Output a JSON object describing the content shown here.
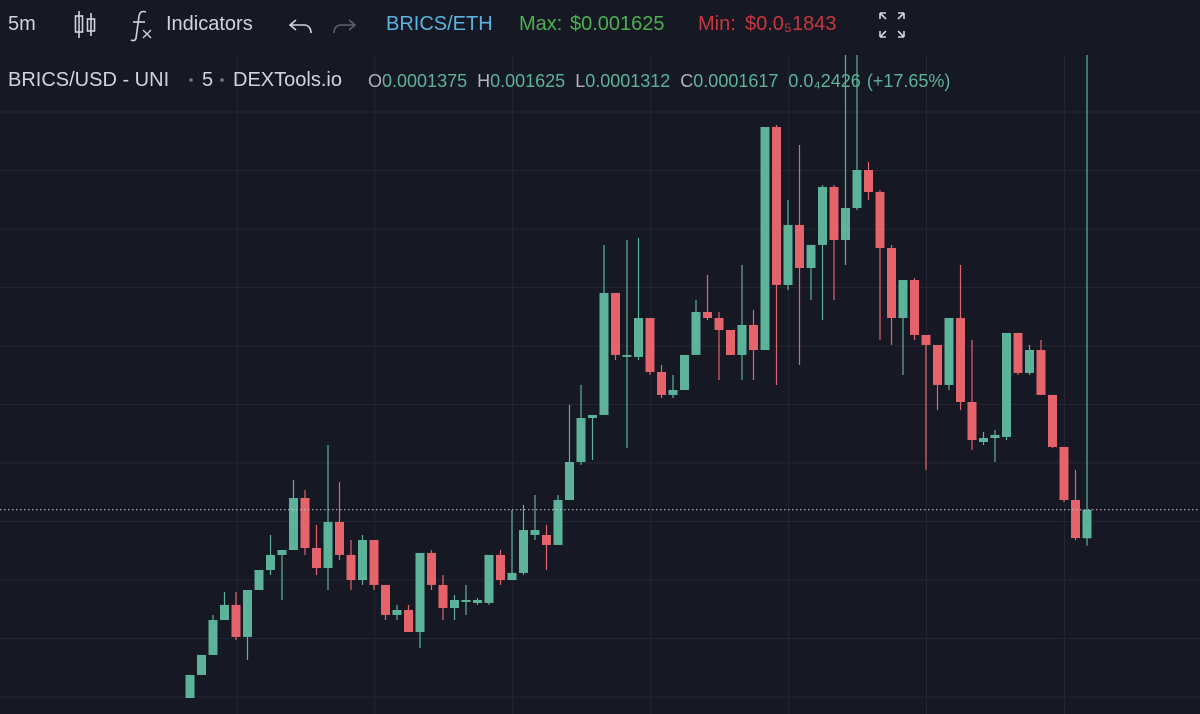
{
  "toolbar": {
    "interval": "5m",
    "indicators": "Indicators",
    "pair": "BRICS/ETH",
    "max_label": "Max:",
    "max_value": "$0.001625",
    "min_label": "Min:",
    "min_value": "$0.0₅1843"
  },
  "chart_data": {
    "type": "candlestick",
    "title": "BRICS/USD - UNI",
    "interval": "5",
    "source": "DEXTools.io",
    "ohlc_labels": [
      "O",
      "H",
      "L",
      "C"
    ],
    "change": "0.0₄2426",
    "change_pct": "(+17.65%)",
    "up_color": "#5db39a",
    "down_color": "#e5636b",
    "ylim": [
      -1.19e-05,
      0.0005525
    ],
    "candles": [
      [
        1.7e-06,
        2.13e-05,
        1.7e-06,
        2.13e-05
      ],
      [
        2.13e-05,
        3.83e-05,
        2.13e-05,
        3.83e-05
      ],
      [
        3.83e-05,
        7.23e-05,
        3.83e-05,
        6.8e-05
      ],
      [
        6.8e-05,
        9.18e-05,
        6.8e-05,
        8.08e-05
      ],
      [
        8.08e-05,
        9.18e-05,
        5.1e-05,
        5.36e-05
      ],
      [
        5.36e-05,
        9.35e-05,
        3.4e-05,
        9.35e-05
      ],
      [
        9.35e-05,
        0.0001105,
        9.35e-05,
        0.0001105
      ],
      [
        0.0001105,
        0.0001403,
        0.0001063,
        0.0001233
      ],
      [
        0.0001233,
        0.0001275,
        8.5e-05,
        0.0001275
      ],
      [
        0.0001275,
        0.000187,
        0.0001275,
        0.0001717
      ],
      [
        0.0001717,
        0.0001785,
        0.0001233,
        0.0001292
      ],
      [
        0.0001292,
        0.0001488,
        0.0001063,
        0.0001122
      ],
      [
        0.0001122,
        0.0002168,
        9.35e-05,
        0.0001513
      ],
      [
        0.0001513,
        0.0001853,
        0.000119,
        0.0001233
      ],
      [
        0.0001233,
        0.000136,
        9.35e-05,
        0.000102
      ],
      [
        0.000102,
        0.0001403,
        9.78e-05,
        0.000136
      ],
      [
        0.000136,
        0.000136,
        9.35e-05,
        9.78e-05
      ],
      [
        9.78e-05,
        9.78e-05,
        6.8e-05,
        7.23e-05
      ],
      [
        7.23e-05,
        8.08e-05,
        6.8e-05,
        7.65e-05
      ],
      [
        7.65e-05,
        8.08e-05,
        5.78e-05,
        5.78e-05
      ],
      [
        5.78e-05,
        0.000125,
        4.42e-05,
        0.000125
      ],
      [
        0.000125,
        0.0001275,
        9.35e-05,
        9.78e-05
      ],
      [
        9.78e-05,
        0.0001063,
        6.8e-05,
        7.82e-05
      ],
      [
        7.82e-05,
        8.93e-05,
        6.8e-05,
        8.5e-05
      ],
      [
        8.33e-05,
        9.78e-05,
        7.23e-05,
        8.5e-05
      ],
      [
        8.25e-05,
        8.67e-05,
        8.08e-05,
        8.5e-05
      ],
      [
        8.25e-05,
        0.0001233,
        8.08e-05,
        0.0001233
      ],
      [
        0.0001233,
        0.0001275,
        9.78e-05,
        0.000102
      ],
      [
        0.000102,
        0.0001615,
        0.000102,
        0.000108
      ],
      [
        0.000108,
        0.0001658,
        0.0001063,
        0.0001445
      ],
      [
        0.0001403,
        0.0001743,
        0.000136,
        0.0001445
      ],
      [
        0.0001403,
        0.0001488,
        0.0001105,
        0.0001318
      ],
      [
        0.0001318,
        0.0001743,
        0.0001318,
        0.00017
      ],
      [
        0.00017,
        0.0002508,
        0.00017,
        0.0002023
      ],
      [
        0.0002023,
        0.0002678,
        0.0001998,
        0.0002397
      ],
      [
        0.0002397,
        0.0002423,
        0.000204,
        0.0002423
      ],
      [
        0.0002423,
        0.0003868,
        0.0002423,
        0.000346
      ],
      [
        0.000346,
        0.000346,
        0.000289,
        0.0002933
      ],
      [
        0.0002916,
        0.000391,
        0.0002142,
        0.0002933
      ],
      [
        0.0002916,
        0.0003927,
        0.000289,
        0.0003247
      ],
      [
        0.0003247,
        0.0003247,
        0.0002763,
        0.0002788
      ],
      [
        0.0002788,
        0.0002848,
        0.0002567,
        0.0002593
      ],
      [
        0.0002593,
        0.0002763,
        0.0002567,
        0.0002635
      ],
      [
        0.0002635,
        0.0002933,
        0.0002635,
        0.0002933
      ],
      [
        0.0002933,
        0.00034,
        0.0002933,
        0.0003298
      ],
      [
        0.0003298,
        0.0003613,
        0.000323,
        0.0003247
      ],
      [
        0.0003247,
        0.0003298,
        0.000272,
        0.0003145
      ],
      [
        0.0003145,
        0.0003145,
        0.0002933,
        0.0002933
      ],
      [
        0.0002933,
        0.0003698,
        0.000272,
        0.0003188
      ],
      [
        0.0003188,
        0.0003315,
        0.000272,
        0.0002975
      ],
      [
        0.0002975,
        0.0004871,
        0.0002975,
        0.0004871
      ],
      [
        0.0004871,
        0.0004888,
        0.0002678,
        0.0003528
      ],
      [
        0.0003528,
        0.000425,
        0.0003485,
        0.0004038
      ],
      [
        0.0004038,
        0.0004718,
        0.0002848,
        0.0003672
      ],
      [
        0.0003672,
        0.0003868,
        0.00034,
        0.0003868
      ],
      [
        0.0003868,
        0.0004378,
        0.000323,
        0.0004361
      ],
      [
        0.0004361,
        0.0004378,
        0.00034,
        0.000391
      ],
      [
        0.000391,
        0.0005483,
        0.0003698,
        0.0004182
      ],
      [
        0.0004182,
        0.0005483,
        0.0004165,
        0.0004505
      ],
      [
        0.0004505,
        0.0004573,
        0.000425,
        0.0004318
      ],
      [
        0.0004318,
        0.0004335,
        0.000306,
        0.0003842
      ],
      [
        0.0003842,
        0.0003868,
        0.0003018,
        0.0003247
      ],
      [
        0.0003247,
        0.000357,
        0.0002763,
        0.000357
      ],
      [
        0.000357,
        0.0003587,
        0.000306,
        0.0003103
      ],
      [
        0.0003103,
        0.0003103,
        0.0001955,
        0.0003018
      ],
      [
        0.0003018,
        0.0003018,
        0.0002465,
        0.0002678
      ],
      [
        0.0002678,
        0.0003247,
        0.0002635,
        0.0003247
      ],
      [
        0.0003247,
        0.0003698,
        0.0002465,
        0.0002533
      ],
      [
        0.0002533,
        0.000306,
        0.0002125,
        0.000221
      ],
      [
        0.0002193,
        0.0002278,
        0.0002168,
        0.0002227
      ],
      [
        0.0002227,
        0.0002295,
        0.0002023,
        0.0002253
      ],
      [
        0.0002236,
        0.000312,
        0.000221,
        0.000312
      ],
      [
        0.000312,
        0.000312,
        0.0002763,
        0.000278
      ],
      [
        0.000278,
        0.0003018,
        0.0002763,
        0.0002975
      ],
      [
        0.0002975,
        0.000306,
        0.0002593,
        0.0002593
      ],
      [
        0.0002593,
        0.0002593,
        0.0002142,
        0.0002151
      ],
      [
        0.0002151,
        0.0002151,
        0.0001683,
        0.00017
      ],
      [
        0.00017,
        0.0001955,
        0.000136,
        0.0001377
      ],
      [
        0.0001375,
        0.001625,
        0.0001312,
        0.0001617
      ]
    ]
  }
}
